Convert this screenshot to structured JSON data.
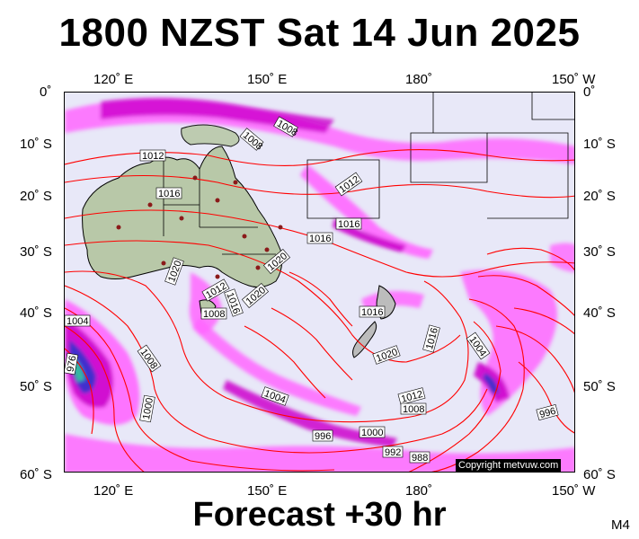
{
  "title": "1800 NZST Sat 14 Jun 2025",
  "subtitle": "Forecast +30 hr",
  "map_code": "M4",
  "copyright": "Copyright metvuw.com",
  "axes": {
    "lon_top": [
      "120˚ E",
      "150˚ E",
      "180˚",
      "150˚ W"
    ],
    "lon_bottom": [
      "120˚ E",
      "150˚ E",
      "180˚",
      "150˚ W"
    ],
    "lat_left": [
      "0˚",
      "10˚ S",
      "20˚ S",
      "30˚ S",
      "40˚ S",
      "50˚ S",
      "60˚ S"
    ],
    "lat_right": [
      "0˚",
      "10˚ S",
      "20˚ S",
      "30˚ S",
      "40˚ S",
      "50˚ S",
      "60˚ S"
    ]
  },
  "isobar_labels": [
    "1008",
    "1008",
    "1012",
    "1016",
    "1012",
    "1016",
    "1016",
    "1020",
    "1020",
    "1012",
    "1016",
    "1020",
    "1008",
    "1004",
    "1016",
    "1016",
    "976",
    "1008",
    "1020",
    "1004",
    "1004",
    "1012",
    "1008",
    "1000",
    "996",
    "1000",
    "992",
    "988",
    "996"
  ],
  "colors": {
    "isobar": "#ff0000",
    "precip_light": "#ff66ff",
    "precip_mid": "#cc00cc",
    "precip_heavy": "#3333cc",
    "land_au": "#b8c8a8",
    "land_nz": "#bcbcbc",
    "ocean": "#e8e8f8"
  }
}
